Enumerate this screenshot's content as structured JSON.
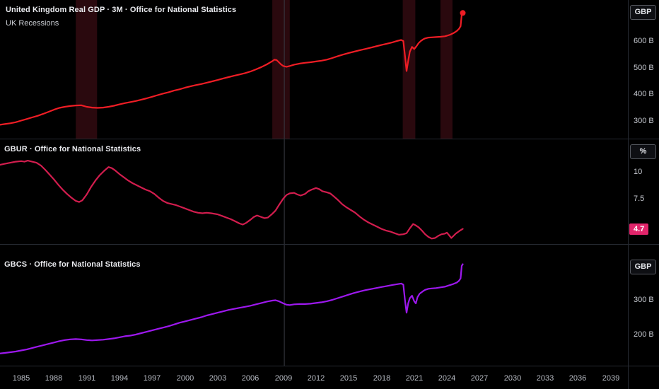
{
  "colors": {
    "background": "#000000",
    "separator": "#262a32",
    "axis_text": "#c7cad1",
    "title_text": "#e9eaee",
    "recession_band": "#8b1d2e",
    "crosshair": "#3a3d45",
    "badge_bg": "#e2256b"
  },
  "crosshair": {
    "year": 2009.1
  },
  "x_axis": {
    "x_range": [
      1983.06,
      2040.57
    ],
    "year_ticks": [
      1985,
      1988,
      1991,
      1994,
      1997,
      2000,
      2003,
      2006,
      2009,
      2012,
      2015,
      2018,
      2021,
      2024,
      2027,
      2030,
      2033,
      2036,
      2039
    ]
  },
  "chart_data": [
    {
      "id": "gdp",
      "type": "line",
      "title": "United Kingdom Real GDP · 3M · Office for National Statistics",
      "overlay_label": "UK Recessions",
      "unit_button": "GBP",
      "line_color": "#ef1d25",
      "ylim": [
        232.0,
        754.7
      ],
      "y_ticks": [
        {
          "v": 600,
          "label": "600 B"
        },
        {
          "v": 500,
          "label": "500 B"
        },
        {
          "v": 400,
          "label": "400 B"
        },
        {
          "v": 300,
          "label": "300 B"
        }
      ],
      "last_point_dot": true,
      "recession_bands": [
        [
          1990.0,
          1991.95
        ],
        [
          2008.0,
          2009.6
        ],
        [
          2019.95,
          2021.1
        ],
        [
          2023.4,
          2024.5
        ]
      ],
      "points": [
        [
          1983.0,
          284
        ],
        [
          1983.5,
          287
        ],
        [
          1984.0,
          290
        ],
        [
          1984.5,
          294
        ],
        [
          1985.0,
          300
        ],
        [
          1985.5,
          306
        ],
        [
          1986.0,
          312
        ],
        [
          1986.5,
          318
        ],
        [
          1987.0,
          325
        ],
        [
          1987.5,
          333
        ],
        [
          1988.0,
          341
        ],
        [
          1988.5,
          348
        ],
        [
          1989.0,
          352
        ],
        [
          1989.5,
          355
        ],
        [
          1990.0,
          357
        ],
        [
          1990.5,
          358
        ],
        [
          1991.0,
          352
        ],
        [
          1991.5,
          349
        ],
        [
          1992.0,
          348
        ],
        [
          1992.5,
          349
        ],
        [
          1993.0,
          352
        ],
        [
          1993.5,
          356
        ],
        [
          1994.0,
          361
        ],
        [
          1994.5,
          366
        ],
        [
          1995.0,
          370
        ],
        [
          1995.5,
          374
        ],
        [
          1996.0,
          379
        ],
        [
          1996.5,
          384
        ],
        [
          1997.0,
          390
        ],
        [
          1997.5,
          396
        ],
        [
          1998.0,
          402
        ],
        [
          1998.5,
          407
        ],
        [
          1999.0,
          413
        ],
        [
          1999.5,
          418
        ],
        [
          2000.0,
          424
        ],
        [
          2000.5,
          429
        ],
        [
          2001.0,
          434
        ],
        [
          2001.5,
          438
        ],
        [
          2002.0,
          443
        ],
        [
          2002.5,
          448
        ],
        [
          2003.0,
          453
        ],
        [
          2003.5,
          459
        ],
        [
          2004.0,
          464
        ],
        [
          2004.5,
          469
        ],
        [
          2005.0,
          474
        ],
        [
          2005.5,
          479
        ],
        [
          2006.0,
          485
        ],
        [
          2006.5,
          493
        ],
        [
          2007.0,
          502
        ],
        [
          2007.5,
          512
        ],
        [
          2008.0,
          524
        ],
        [
          2008.2,
          530
        ],
        [
          2008.4,
          528
        ],
        [
          2008.6,
          520
        ],
        [
          2008.8,
          512
        ],
        [
          2009.0,
          506
        ],
        [
          2009.3,
          503
        ],
        [
          2009.6,
          506
        ],
        [
          2010.0,
          511
        ],
        [
          2010.5,
          515
        ],
        [
          2011.0,
          518
        ],
        [
          2011.5,
          520
        ],
        [
          2012.0,
          523
        ],
        [
          2012.5,
          526
        ],
        [
          2013.0,
          530
        ],
        [
          2013.5,
          536
        ],
        [
          2014.0,
          543
        ],
        [
          2014.5,
          549
        ],
        [
          2015.0,
          555
        ],
        [
          2015.5,
          560
        ],
        [
          2016.0,
          565
        ],
        [
          2016.5,
          570
        ],
        [
          2017.0,
          575
        ],
        [
          2017.5,
          580
        ],
        [
          2018.0,
          585
        ],
        [
          2018.5,
          590
        ],
        [
          2019.0,
          595
        ],
        [
          2019.4,
          600
        ],
        [
          2019.8,
          604
        ],
        [
          2020.0,
          600
        ],
        [
          2020.15,
          545
        ],
        [
          2020.3,
          487
        ],
        [
          2020.45,
          525
        ],
        [
          2020.6,
          560
        ],
        [
          2020.8,
          578
        ],
        [
          2021.0,
          570
        ],
        [
          2021.2,
          580
        ],
        [
          2021.4,
          592
        ],
        [
          2021.6,
          600
        ],
        [
          2021.8,
          606
        ],
        [
          2022.0,
          610
        ],
        [
          2022.3,
          613
        ],
        [
          2022.6,
          614
        ],
        [
          2023.0,
          615
        ],
        [
          2023.4,
          616
        ],
        [
          2023.8,
          618
        ],
        [
          2024.0,
          620
        ],
        [
          2024.3,
          624
        ],
        [
          2024.6,
          630
        ],
        [
          2024.9,
          638
        ],
        [
          2025.1,
          646
        ],
        [
          2025.25,
          656
        ],
        [
          2025.35,
          700
        ],
        [
          2025.45,
          706
        ]
      ]
    },
    {
      "id": "gbur",
      "type": "line",
      "title": "GBUR · Office for National Statistics",
      "unit_button": "%",
      "line_color": "#d21d4e",
      "ylim": [
        3.29,
        13.03
      ],
      "y_ticks": [
        {
          "v": 10,
          "label": "10"
        },
        {
          "v": 7.5,
          "label": "7.5"
        }
      ],
      "last_value_label": {
        "text": "4.7",
        "value": 4.7
      },
      "points": [
        [
          1983.0,
          10.65
        ],
        [
          1983.5,
          10.75
        ],
        [
          1984.0,
          10.85
        ],
        [
          1984.5,
          10.95
        ],
        [
          1985.0,
          11.0
        ],
        [
          1985.3,
          10.95
        ],
        [
          1985.6,
          11.05
        ],
        [
          1986.0,
          10.95
        ],
        [
          1986.4,
          10.85
        ],
        [
          1986.8,
          10.6
        ],
        [
          1987.2,
          10.2
        ],
        [
          1987.6,
          9.75
        ],
        [
          1988.0,
          9.3
        ],
        [
          1988.4,
          8.8
        ],
        [
          1988.8,
          8.35
        ],
        [
          1989.2,
          7.95
        ],
        [
          1989.6,
          7.6
        ],
        [
          1990.0,
          7.3
        ],
        [
          1990.3,
          7.2
        ],
        [
          1990.6,
          7.35
        ],
        [
          1991.0,
          7.9
        ],
        [
          1991.4,
          8.6
        ],
        [
          1991.8,
          9.2
        ],
        [
          1992.2,
          9.7
        ],
        [
          1992.6,
          10.1
        ],
        [
          1993.0,
          10.45
        ],
        [
          1993.3,
          10.35
        ],
        [
          1993.6,
          10.15
        ],
        [
          1994.0,
          9.8
        ],
        [
          1994.4,
          9.5
        ],
        [
          1994.8,
          9.2
        ],
        [
          1995.2,
          8.95
        ],
        [
          1995.6,
          8.75
        ],
        [
          1996.0,
          8.55
        ],
        [
          1996.4,
          8.35
        ],
        [
          1996.8,
          8.2
        ],
        [
          1997.2,
          7.95
        ],
        [
          1997.6,
          7.6
        ],
        [
          1998.0,
          7.3
        ],
        [
          1998.4,
          7.1
        ],
        [
          1998.8,
          7.0
        ],
        [
          1999.2,
          6.9
        ],
        [
          1999.6,
          6.75
        ],
        [
          2000.0,
          6.6
        ],
        [
          2000.4,
          6.45
        ],
        [
          2000.8,
          6.3
        ],
        [
          2001.2,
          6.2
        ],
        [
          2001.6,
          6.15
        ],
        [
          2002.0,
          6.2
        ],
        [
          2002.4,
          6.15
        ],
        [
          2003.0,
          6.05
        ],
        [
          2003.4,
          5.9
        ],
        [
          2003.8,
          5.75
        ],
        [
          2004.2,
          5.6
        ],
        [
          2004.6,
          5.4
        ],
        [
          2005.0,
          5.2
        ],
        [
          2005.3,
          5.1
        ],
        [
          2005.6,
          5.25
        ],
        [
          2006.0,
          5.55
        ],
        [
          2006.3,
          5.8
        ],
        [
          2006.6,
          5.95
        ],
        [
          2007.0,
          5.8
        ],
        [
          2007.3,
          5.7
        ],
        [
          2007.6,
          5.75
        ],
        [
          2008.0,
          6.1
        ],
        [
          2008.3,
          6.4
        ],
        [
          2008.6,
          6.9
        ],
        [
          2009.0,
          7.5
        ],
        [
          2009.3,
          7.85
        ],
        [
          2009.6,
          8.0
        ],
        [
          2010.0,
          8.05
        ],
        [
          2010.3,
          7.9
        ],
        [
          2010.6,
          7.8
        ],
        [
          2011.0,
          7.95
        ],
        [
          2011.3,
          8.2
        ],
        [
          2011.6,
          8.35
        ],
        [
          2012.0,
          8.5
        ],
        [
          2012.3,
          8.4
        ],
        [
          2012.6,
          8.2
        ],
        [
          2013.0,
          8.1
        ],
        [
          2013.3,
          8.0
        ],
        [
          2013.6,
          7.75
        ],
        [
          2014.0,
          7.4
        ],
        [
          2014.4,
          7.0
        ],
        [
          2014.8,
          6.7
        ],
        [
          2015.2,
          6.45
        ],
        [
          2015.6,
          6.2
        ],
        [
          2016.0,
          5.85
        ],
        [
          2016.4,
          5.55
        ],
        [
          2016.8,
          5.3
        ],
        [
          2017.2,
          5.1
        ],
        [
          2017.6,
          4.9
        ],
        [
          2018.0,
          4.7
        ],
        [
          2018.4,
          4.55
        ],
        [
          2018.8,
          4.45
        ],
        [
          2019.2,
          4.3
        ],
        [
          2019.6,
          4.15
        ],
        [
          2020.0,
          4.2
        ],
        [
          2020.3,
          4.3
        ],
        [
          2020.6,
          4.75
        ],
        [
          2020.9,
          5.15
        ],
        [
          2021.1,
          5.05
        ],
        [
          2021.4,
          4.85
        ],
        [
          2021.7,
          4.55
        ],
        [
          2022.0,
          4.2
        ],
        [
          2022.3,
          3.95
        ],
        [
          2022.6,
          3.8
        ],
        [
          2022.9,
          3.85
        ],
        [
          2023.2,
          4.05
        ],
        [
          2023.5,
          4.2
        ],
        [
          2023.8,
          4.25
        ],
        [
          2024.0,
          4.35
        ],
        [
          2024.2,
          4.1
        ],
        [
          2024.4,
          3.85
        ],
        [
          2024.6,
          4.05
        ],
        [
          2024.8,
          4.25
        ],
        [
          2025.0,
          4.4
        ],
        [
          2025.2,
          4.55
        ],
        [
          2025.45,
          4.7
        ]
      ]
    },
    {
      "id": "gbcs",
      "type": "line",
      "title": "GBCS · Office for National Statistics",
      "unit_button": "GBP",
      "line_color": "#9d18ee",
      "ylim": [
        110.2,
        459.1
      ],
      "y_ticks": [
        {
          "v": 300,
          "label": "300 B"
        },
        {
          "v": 200,
          "label": "200 B"
        }
      ],
      "points": [
        [
          1983.0,
          145
        ],
        [
          1983.5,
          147
        ],
        [
          1984.0,
          149
        ],
        [
          1984.5,
          151
        ],
        [
          1985.0,
          154
        ],
        [
          1985.5,
          157
        ],
        [
          1986.0,
          161
        ],
        [
          1986.5,
          165
        ],
        [
          1987.0,
          169
        ],
        [
          1987.5,
          173
        ],
        [
          1988.0,
          177
        ],
        [
          1988.5,
          181
        ],
        [
          1989.0,
          184
        ],
        [
          1989.5,
          186
        ],
        [
          1990.0,
          187
        ],
        [
          1990.5,
          186
        ],
        [
          1991.0,
          184
        ],
        [
          1991.5,
          183
        ],
        [
          1992.0,
          184
        ],
        [
          1992.5,
          185
        ],
        [
          1993.0,
          187
        ],
        [
          1993.5,
          189
        ],
        [
          1994.0,
          192
        ],
        [
          1994.5,
          195
        ],
        [
          1995.0,
          197
        ],
        [
          1995.5,
          200
        ],
        [
          1996.0,
          204
        ],
        [
          1996.5,
          208
        ],
        [
          1997.0,
          212
        ],
        [
          1997.5,
          216
        ],
        [
          1998.0,
          220
        ],
        [
          1998.5,
          224
        ],
        [
          1999.0,
          229
        ],
        [
          1999.5,
          234
        ],
        [
          2000.0,
          238
        ],
        [
          2000.5,
          242
        ],
        [
          2001.0,
          246
        ],
        [
          2001.5,
          250
        ],
        [
          2002.0,
          255
        ],
        [
          2002.5,
          259
        ],
        [
          2003.0,
          263
        ],
        [
          2003.5,
          267
        ],
        [
          2004.0,
          271
        ],
        [
          2004.5,
          274
        ],
        [
          2005.0,
          277
        ],
        [
          2005.5,
          280
        ],
        [
          2006.0,
          283
        ],
        [
          2006.5,
          287
        ],
        [
          2007.0,
          291
        ],
        [
          2007.5,
          295
        ],
        [
          2008.0,
          298
        ],
        [
          2008.3,
          299
        ],
        [
          2008.6,
          296
        ],
        [
          2009.0,
          290
        ],
        [
          2009.3,
          286
        ],
        [
          2009.6,
          285
        ],
        [
          2010.0,
          287
        ],
        [
          2010.5,
          288
        ],
        [
          2011.0,
          288
        ],
        [
          2011.5,
          289
        ],
        [
          2012.0,
          291
        ],
        [
          2012.5,
          293
        ],
        [
          2013.0,
          296
        ],
        [
          2013.5,
          300
        ],
        [
          2014.0,
          305
        ],
        [
          2014.5,
          310
        ],
        [
          2015.0,
          315
        ],
        [
          2015.5,
          320
        ],
        [
          2016.0,
          324
        ],
        [
          2016.5,
          328
        ],
        [
          2017.0,
          331
        ],
        [
          2017.5,
          334
        ],
        [
          2018.0,
          337
        ],
        [
          2018.5,
          340
        ],
        [
          2019.0,
          343
        ],
        [
          2019.4,
          345
        ],
        [
          2019.8,
          347
        ],
        [
          2020.0,
          344
        ],
        [
          2020.15,
          300
        ],
        [
          2020.3,
          263
        ],
        [
          2020.45,
          290
        ],
        [
          2020.6,
          305
        ],
        [
          2020.8,
          312
        ],
        [
          2021.0,
          296
        ],
        [
          2021.15,
          290
        ],
        [
          2021.3,
          308
        ],
        [
          2021.5,
          318
        ],
        [
          2021.8,
          325
        ],
        [
          2022.0,
          329
        ],
        [
          2022.3,
          332
        ],
        [
          2022.6,
          333
        ],
        [
          2023.0,
          334
        ],
        [
          2023.4,
          336
        ],
        [
          2023.8,
          338
        ],
        [
          2024.0,
          340
        ],
        [
          2024.3,
          343
        ],
        [
          2024.6,
          346
        ],
        [
          2024.9,
          350
        ],
        [
          2025.1,
          355
        ],
        [
          2025.25,
          362
        ],
        [
          2025.35,
          398
        ],
        [
          2025.45,
          403
        ]
      ]
    }
  ]
}
